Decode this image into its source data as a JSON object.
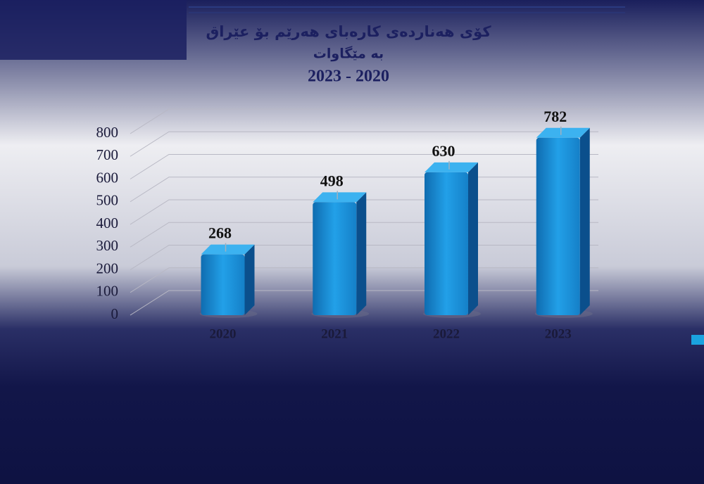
{
  "chart_data": {
    "type": "bar",
    "title": "کۆی هەناردەی کارەبای هەرێم بۆ عێراق",
    "subtitle": "بە مێگاوات",
    "annotations": [
      "2023 - 2020"
    ],
    "categories": [
      "2020",
      "2021",
      "2022",
      "2023"
    ],
    "values": [
      268,
      498,
      630,
      782
    ],
    "color": "#1a8fd6",
    "ylim": [
      0,
      800
    ],
    "yticks": [
      0,
      100,
      200,
      300,
      400,
      500,
      600,
      700,
      800
    ],
    "grid": true
  }
}
